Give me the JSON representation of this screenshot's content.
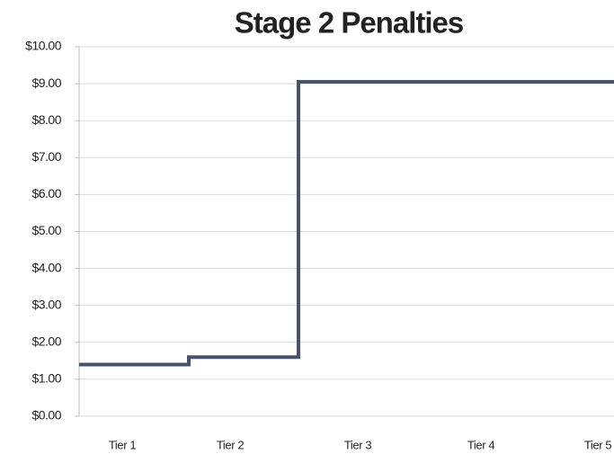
{
  "chart_data": {
    "type": "step",
    "title": "Stage 2 Penalties",
    "categories": [
      "Tier 1",
      "Tier 2",
      "Tier 3",
      "Tier 4",
      "Tier 5"
    ],
    "values": [
      1.4,
      1.6,
      9.05,
      9.05,
      9.05
    ],
    "color": "#44546a",
    "ylim": [
      0,
      10
    ],
    "yticks": [
      {
        "value": 0,
        "label": "$0.00"
      },
      {
        "value": 1,
        "label": "$1.00"
      },
      {
        "value": 2,
        "label": "$2.00"
      },
      {
        "value": 3,
        "label": "$3.00"
      },
      {
        "value": 4,
        "label": "$4.00"
      },
      {
        "value": 5,
        "label": "$5.00"
      },
      {
        "value": 6,
        "label": "$6.00"
      },
      {
        "value": 7,
        "label": "$7.00"
      },
      {
        "value": 8,
        "label": "$8.00"
      },
      {
        "value": 9,
        "label": "$9.00"
      },
      {
        "value": 10,
        "label": "$10.00"
      }
    ],
    "grid": true
  }
}
